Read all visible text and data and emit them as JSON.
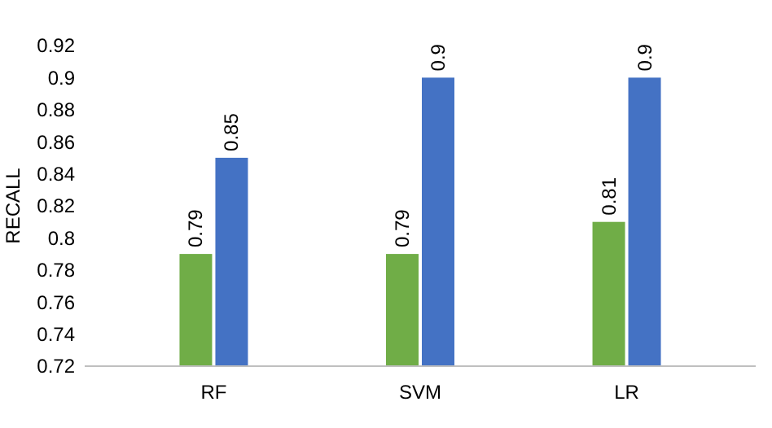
{
  "chart_data": {
    "type": "bar",
    "ylabel": "RECALL",
    "categories": [
      "RF",
      "SVM",
      "LR"
    ],
    "series": [
      {
        "color": "#70ad47",
        "values": [
          0.79,
          0.79,
          0.81
        ]
      },
      {
        "color": "#4472c4",
        "values": [
          0.85,
          0.9,
          0.9
        ]
      }
    ],
    "ylim": [
      0.72,
      0.92
    ],
    "yticks": [
      0.72,
      0.74,
      0.76,
      0.78,
      0.8,
      0.82,
      0.84,
      0.86,
      0.88,
      0.9,
      0.92
    ],
    "data_labels": true,
    "grid": false,
    "legend": false
  }
}
